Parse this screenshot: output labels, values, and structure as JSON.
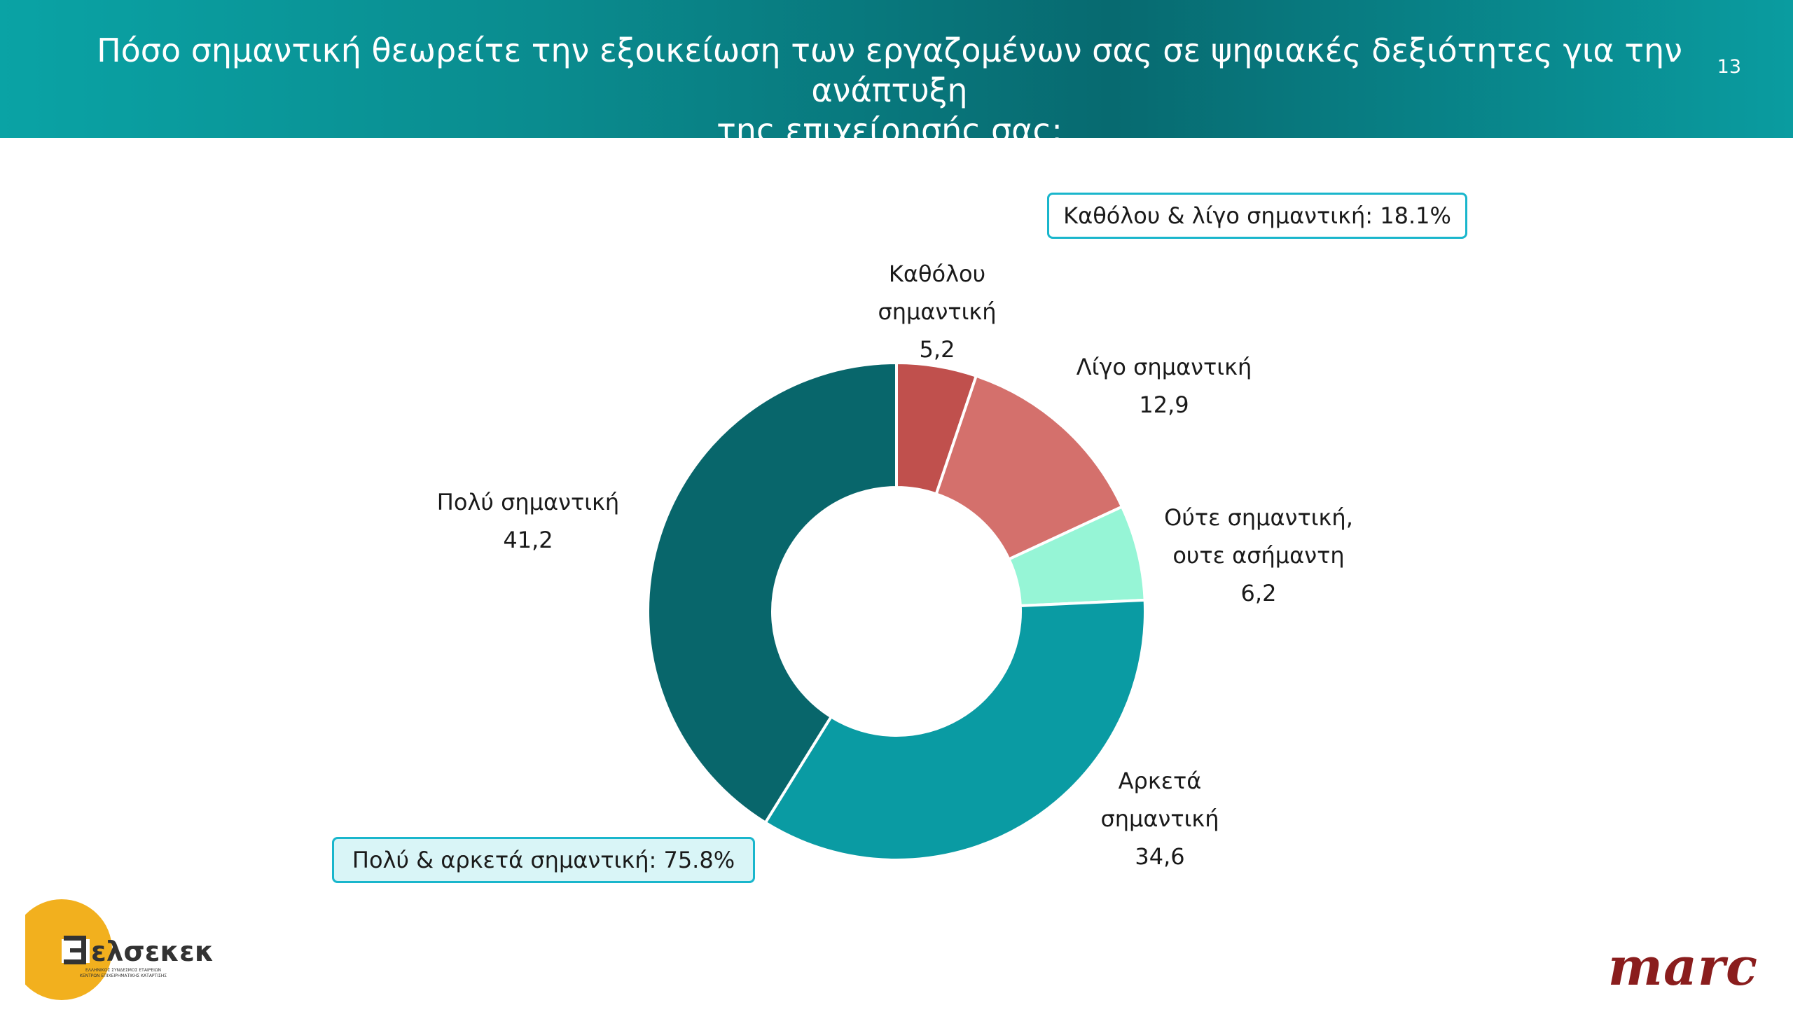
{
  "header": {
    "title": "Πόσο σημαντική θεωρείτε την εξοικείωση των εργαζομένων σας σε ψηφιακές δεξιότητες για την ανάπτυξη\nτης επιχείρησής σας;",
    "page_number": "13"
  },
  "summary": {
    "low": "Καθόλου & λίγο σημαντική: 18.1%",
    "high": "Πολύ & αρκετά σημαντική: 75.8%"
  },
  "chart_data": {
    "type": "pie",
    "donut": true,
    "title": "",
    "categories": [
      "Καθόλου σημαντική",
      "Λίγο σημαντική",
      "Ούτε σημαντική, ουτε ασήμαντη",
      "Αρκετά σημαντική",
      "Πολύ σημαντική"
    ],
    "label_lines": [
      [
        "Καθόλου",
        "σημαντική"
      ],
      [
        "Λίγο σημαντική"
      ],
      [
        "Ούτε σημαντική,",
        "ουτε ασήμαντη"
      ],
      [
        "Αρκετά",
        "σημαντική"
      ],
      [
        "Πολύ σημαντική"
      ]
    ],
    "values": [
      5.2,
      12.9,
      6.2,
      34.6,
      41.2
    ],
    "value_labels": [
      "5,2",
      "12,9",
      "6,2",
      "34,6",
      "41,2"
    ],
    "colors": [
      "#c0504d",
      "#d4706c",
      "#96f5d6",
      "#0a9ba3",
      "#08666b"
    ]
  },
  "logos": {
    "left_name": "ελσεκεκ",
    "left_subtitle_1": "ΕΛΛΗΝΙΚΟΣ ΣΥΝΔΕΣΜΟΣ ΕΤΑΙΡΕΙΩΝ",
    "left_subtitle_2": "ΚΕΝΤΡΩΝ ΕΠΙΧΕΙΡΗΜΑΤΙΚΗΣ ΚΑΤΑΡΤΙΣΗΣ",
    "right_name": "marc"
  }
}
